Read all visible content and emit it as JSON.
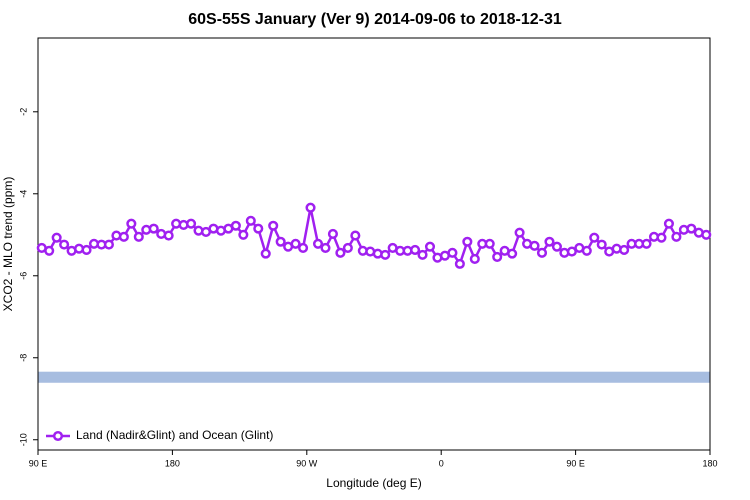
{
  "chart_data": {
    "type": "line",
    "title": "60S-55S January (Ver 9)   2014-09-06 to 2018-12-31",
    "xlabel": "Longitude (deg E)",
    "ylabel": "XCO2 - MLO trend (ppm)",
    "xlim": [
      90,
      540
    ],
    "ylim": [
      -10.25,
      -0.2
    ],
    "xticks": [
      {
        "value": 90,
        "label": "90 E"
      },
      180,
      {
        "value": 270,
        "label": "90 W"
      },
      {
        "value": 360,
        "label": "0"
      },
      {
        "value": 450,
        "label": "90 E"
      },
      {
        "value": 540,
        "label": "180"
      }
    ],
    "yticks": [
      -10,
      -8,
      -6,
      -4,
      -2
    ],
    "legend": "bottom-left",
    "band": {
      "ymin": -8.61,
      "ymax": -8.34,
      "color": "#a7bde0"
    },
    "series": [
      {
        "name": "Land (Nadir&Glint) and Ocean (Glint)",
        "color": "#a020f0",
        "x": [
          92.5,
          97.5,
          102.5,
          107.5,
          112.5,
          117.5,
          122.5,
          127.5,
          132.5,
          137.5,
          142.5,
          147.5,
          152.5,
          157.5,
          162.5,
          167.5,
          172.5,
          177.5,
          182.5,
          187.5,
          192.5,
          197.5,
          202.5,
          207.5,
          212.5,
          217.5,
          222.5,
          227.5,
          232.5,
          237.5,
          242.5,
          247.5,
          252.5,
          257.5,
          262.5,
          267.5,
          272.5,
          277.5,
          282.5,
          287.5,
          292.5,
          297.5,
          302.5,
          307.5,
          312.5,
          317.5,
          322.5,
          327.5,
          332.5,
          337.5,
          342.5,
          347.5,
          352.5,
          357.5,
          362.5,
          367.5,
          372.5,
          377.5,
          382.5,
          387.5,
          392.5,
          397.5,
          402.5,
          407.5,
          412.5,
          417.5,
          422.5,
          427.5,
          432.5,
          437.5,
          442.5,
          447.5,
          452.5,
          457.5,
          462.5,
          467.5,
          472.5,
          477.5,
          482.5,
          487.5,
          492.5,
          497.5,
          502.5,
          507.5,
          512.5,
          517.5,
          522.5,
          527.5,
          532.5,
          537.5
        ],
        "values": [
          -5.32,
          -5.39,
          -5.07,
          -5.24,
          -5.39,
          -5.34,
          -5.37,
          -5.22,
          -5.24,
          -5.24,
          -5.02,
          -5.05,
          -4.73,
          -5.05,
          -4.88,
          -4.85,
          -4.98,
          -5.02,
          -4.73,
          -4.76,
          -4.73,
          -4.9,
          -4.93,
          -4.85,
          -4.9,
          -4.85,
          -4.78,
          -5.0,
          -4.66,
          -4.85,
          -5.46,
          -4.78,
          -5.17,
          -5.29,
          -5.22,
          -5.32,
          -4.34,
          -5.22,
          -5.32,
          -4.98,
          -5.44,
          -5.32,
          -5.02,
          -5.39,
          -5.41,
          -5.46,
          -5.49,
          -5.32,
          -5.39,
          -5.39,
          -5.37,
          -5.49,
          -5.29,
          -5.56,
          -5.51,
          -5.44,
          -5.71,
          -5.17,
          -5.59,
          -5.22,
          -5.22,
          -5.54,
          -5.39,
          -5.46,
          -4.95,
          -5.22,
          -5.27,
          -5.44,
          -5.17,
          -5.29,
          -5.44,
          -5.41,
          -5.32,
          -5.39,
          -5.07,
          -5.24,
          -5.41,
          -5.34,
          -5.37,
          -5.22,
          -5.22,
          -5.22,
          -5.05,
          -5.07,
          -4.73,
          -5.05,
          -4.88,
          -4.85,
          -4.95,
          -5.0
        ]
      }
    ]
  }
}
